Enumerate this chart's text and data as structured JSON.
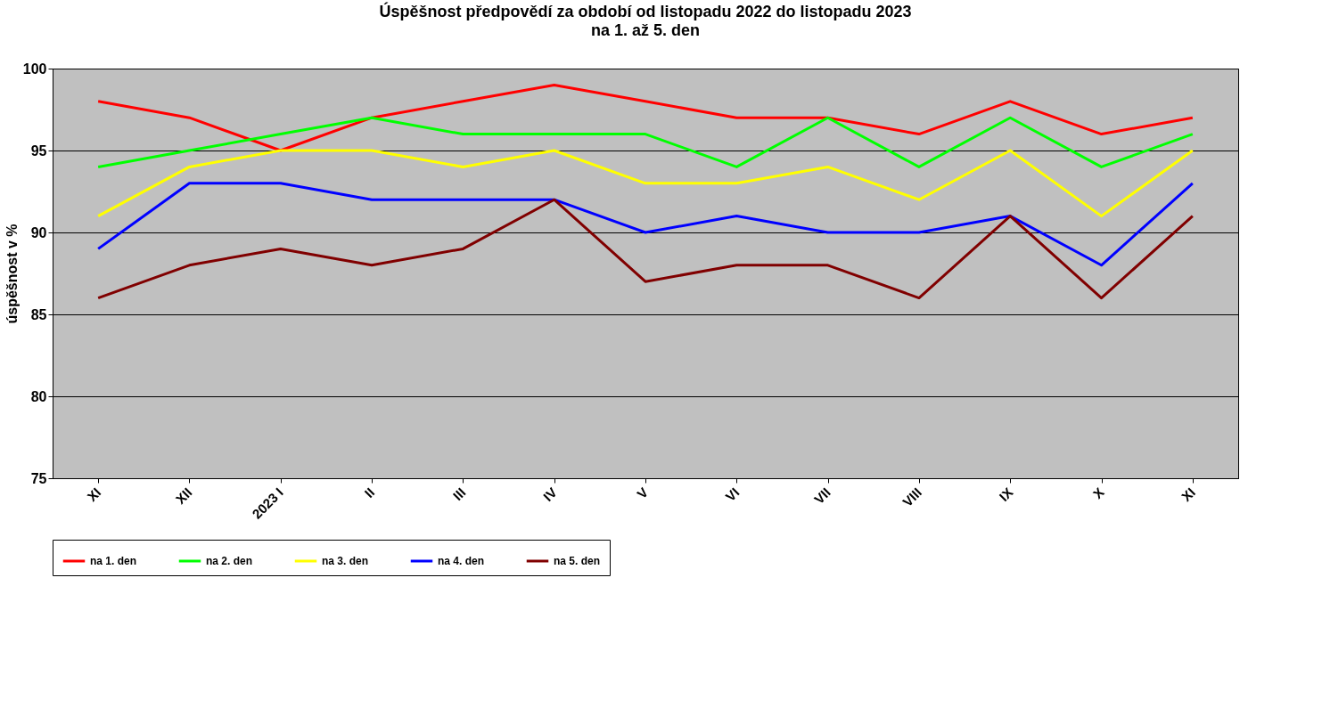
{
  "chart_data": {
    "type": "line",
    "title": "Úspěšnost předpovědí za období od listopadu 2022 do listopadu 2023",
    "subtitle": "na 1. až 5. den",
    "ylabel": "úspěšnost v %",
    "categories": [
      "XI",
      "XII",
      "2023 I",
      "II",
      "III",
      "IV",
      "V",
      "VI",
      "VII",
      "VIII",
      "IX",
      "X",
      "XI"
    ],
    "series": [
      {
        "name": "na 1. den",
        "color": "#ff0000",
        "values": [
          98,
          97,
          95,
          97,
          98,
          99,
          98,
          97,
          97,
          96,
          98,
          96,
          97
        ]
      },
      {
        "name": "na 2. den",
        "color": "#00ff00",
        "values": [
          94,
          95,
          96,
          97,
          96,
          96,
          96,
          94,
          97,
          94,
          97,
          94,
          96
        ]
      },
      {
        "name": "na 3. den",
        "color": "#ffff00",
        "values": [
          91,
          94,
          95,
          95,
          94,
          95,
          93,
          93,
          94,
          92,
          95,
          91,
          95
        ]
      },
      {
        "name": "na 4. den",
        "color": "#0000ff",
        "values": [
          89,
          93,
          93,
          92,
          92,
          92,
          90,
          91,
          90,
          90,
          91,
          88,
          93
        ]
      },
      {
        "name": "na 5. den",
        "color": "#800000",
        "values": [
          86,
          88,
          89,
          88,
          89,
          92,
          87,
          88,
          88,
          86,
          91,
          86,
          91
        ]
      }
    ],
    "ylim": [
      75,
      100
    ],
    "yticks": [
      75,
      80,
      85,
      90,
      95,
      100
    ],
    "grid": "y",
    "legend": "bottom",
    "marker": "none",
    "line_style": "solid"
  }
}
